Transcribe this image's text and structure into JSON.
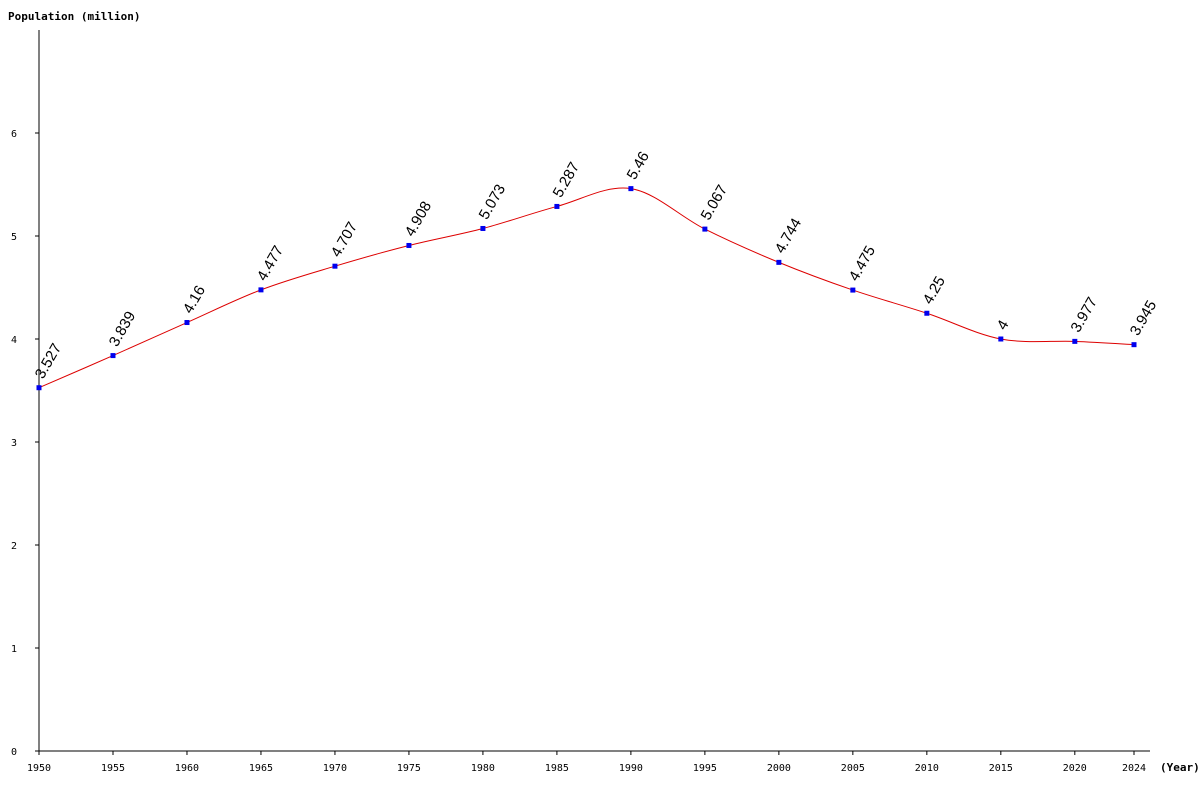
{
  "chart_data": {
    "type": "line",
    "ylabel": "Population (million)",
    "xlabel": "(Year)",
    "x": [
      1950,
      1955,
      1960,
      1965,
      1970,
      1975,
      1980,
      1985,
      1990,
      1995,
      2000,
      2005,
      2010,
      2015,
      2020,
      2024
    ],
    "series": [
      {
        "values": [
          3.527,
          3.839,
          4.16,
          4.477,
          4.707,
          4.908,
          5.073,
          5.287,
          5.46,
          5.067,
          4.744,
          4.475,
          4.25,
          4,
          3.977,
          3.945
        ],
        "data_labels": [
          "3.527",
          "3.839",
          "4.16",
          "4.477",
          "4.707",
          "4.908",
          "5.073",
          "5.287",
          "5.46",
          "5.067",
          "4.744",
          "4.475",
          "4.25",
          "4",
          "3.977",
          "3.945"
        ]
      }
    ],
    "x_tick_labels": [
      "1950",
      "1955",
      "1960",
      "1965",
      "1970",
      "1975",
      "1980",
      "1985",
      "1990",
      "1995",
      "2000",
      "2005",
      "2010",
      "2015",
      "2020",
      "2024"
    ],
    "y_ticks": [
      0,
      1,
      2,
      3,
      4,
      5,
      6
    ],
    "y_tick_labels": [
      "0",
      "1",
      "2",
      "3",
      "4",
      "5",
      "6"
    ],
    "ylim": [
      0,
      7
    ],
    "xlim": [
      1950,
      2025
    ],
    "grid": false,
    "colors": {
      "line": "#dd0000",
      "marker": "#0000ee",
      "axis": "#000000"
    }
  }
}
